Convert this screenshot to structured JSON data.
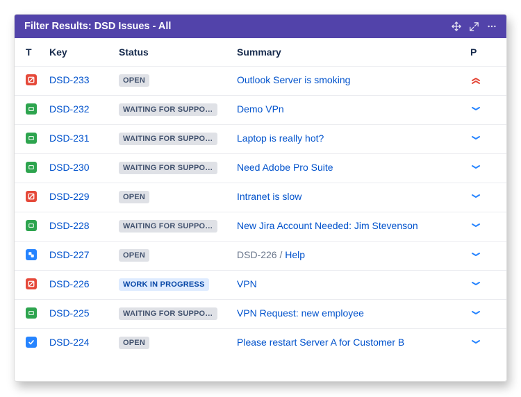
{
  "colors": {
    "header_bg": "#5243aa",
    "link": "#0052cc",
    "text": "#172b4d",
    "muted": "#6b778c",
    "border": "#ebecf0",
    "status_default_bg": "#dfe1e6",
    "status_default_fg": "#42526e",
    "status_inprogress_bg": "#deebff",
    "status_inprogress_fg": "#0747a6",
    "type_red": "#e5493a",
    "type_green": "#2da44e",
    "type_blue": "#2684ff",
    "prio_normal": "#2684ff",
    "prio_high": "#e5493a"
  },
  "header": {
    "title": "Filter Results: DSD Issues - All"
  },
  "columns": {
    "type": "T",
    "key": "Key",
    "status": "Status",
    "summary": "Summary",
    "priority": "P"
  },
  "rows": [
    {
      "type": "incident",
      "key": "DSD-233",
      "status": "OPEN",
      "status_kind": "default",
      "summary": "Outlook Server is smoking",
      "priority": "highest"
    },
    {
      "type": "service",
      "key": "DSD-232",
      "status": "WAITING FOR SUPPO…",
      "status_kind": "default",
      "summary": "Demo VPn",
      "priority": "low"
    },
    {
      "type": "service",
      "key": "DSD-231",
      "status": "WAITING FOR SUPPO…",
      "status_kind": "default",
      "summary": "Laptop is really hot?",
      "priority": "low"
    },
    {
      "type": "service",
      "key": "DSD-230",
      "status": "WAITING FOR SUPPO…",
      "status_kind": "default",
      "summary": "Need Adobe Pro Suite",
      "priority": "low"
    },
    {
      "type": "incident",
      "key": "DSD-229",
      "status": "OPEN",
      "status_kind": "default",
      "summary": "Intranet is slow",
      "priority": "low"
    },
    {
      "type": "service",
      "key": "DSD-228",
      "status": "WAITING FOR SUPPO…",
      "status_kind": "default",
      "summary": "New Jira Account Needed: Jim Stevenson",
      "priority": "low"
    },
    {
      "type": "subtask",
      "key": "DSD-227",
      "status": "OPEN",
      "status_kind": "default",
      "summary_prefix": "DSD-226 /  ",
      "summary": "Help",
      "priority": "low"
    },
    {
      "type": "incident",
      "key": "DSD-226",
      "status": "WORK IN PROGRESS",
      "status_kind": "inprogress",
      "summary": "VPN",
      "priority": "low"
    },
    {
      "type": "service",
      "key": "DSD-225",
      "status": "WAITING FOR SUPPO…",
      "status_kind": "default",
      "summary": "VPN Request: new employee",
      "priority": "low"
    },
    {
      "type": "task",
      "key": "DSD-224",
      "status": "OPEN",
      "status_kind": "default",
      "summary": "Please restart Server A for Customer B",
      "priority": "low"
    }
  ]
}
